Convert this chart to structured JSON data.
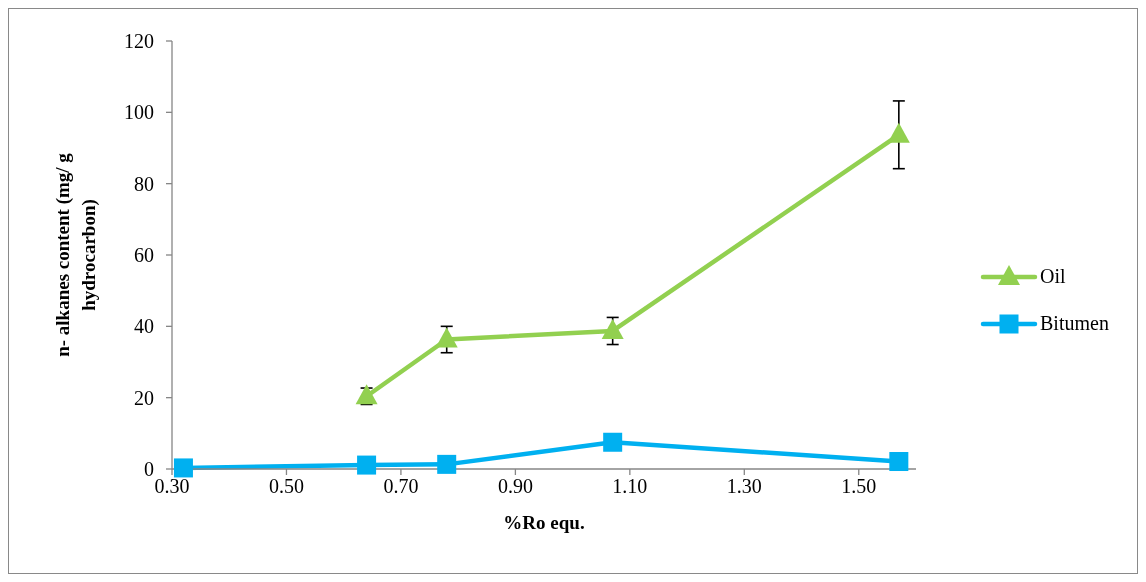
{
  "chart_data": {
    "type": "line",
    "xlabel": "%Ro equ.",
    "ylabel": "n- alkanes content (mg/ g hydrocarbon)",
    "x": [
      0.32,
      0.64,
      0.78,
      1.07,
      1.57
    ],
    "series": [
      {
        "name": "Oil",
        "color": "#92d050",
        "marker": "triangle",
        "values": [
          null,
          20.4,
          36.3,
          38.7,
          93.7
        ],
        "errors": [
          null,
          2.3,
          3.7,
          3.8,
          9.5
        ]
      },
      {
        "name": "Bitumen",
        "color": "#00b0f0",
        "marker": "square",
        "values": [
          0.3,
          1.1,
          1.3,
          7.5,
          2.1
        ]
      }
    ],
    "xlim": [
      0.3,
      1.6
    ],
    "xticks": [
      {
        "value": 0.3,
        "label": "0.30"
      },
      {
        "value": 0.5,
        "label": "0.50"
      },
      {
        "value": 0.7,
        "label": "0.70"
      },
      {
        "value": 0.9,
        "label": "0.90"
      },
      {
        "value": 1.1,
        "label": "1.10"
      },
      {
        "value": 1.3,
        "label": "1.30"
      },
      {
        "value": 1.5,
        "label": "1.50"
      }
    ],
    "ylim": [
      0,
      120
    ],
    "yticks": [
      0,
      20,
      40,
      60,
      80,
      100,
      120
    ],
    "legend": "right"
  }
}
